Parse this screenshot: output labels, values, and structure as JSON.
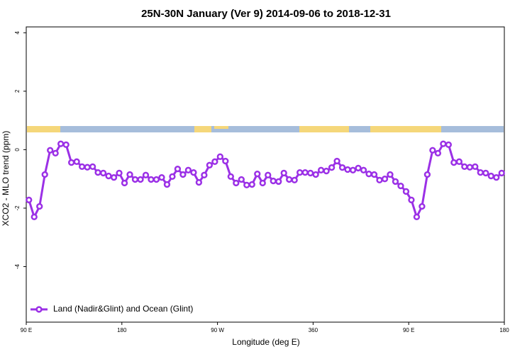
{
  "chart_data": {
    "type": "line",
    "title": "25N-30N January (Ver 9)   2014-09-06 to 2018-12-31",
    "x_label": "Longitude (deg E)",
    "y_label": "XCO2 - MLO trend (ppm)",
    "x": [
      92.5,
      97.5,
      102.5,
      107.5,
      112.5,
      117.5,
      122.5,
      127.5,
      132.5,
      137.5,
      142.5,
      147.5,
      152.5,
      157.5,
      162.5,
      167.5,
      172.5,
      177.5,
      182.5,
      187.5,
      192.5,
      197.5,
      202.5,
      207.5,
      212.5,
      217.5,
      222.5,
      227.5,
      232.5,
      237.5,
      242.5,
      247.5,
      252.5,
      257.5,
      262.5,
      267.5,
      272.5,
      277.5,
      282.5,
      287.5,
      292.5,
      297.5,
      302.5,
      307.5,
      312.5,
      317.5,
      322.5,
      327.5,
      332.5,
      337.5,
      342.5,
      347.5,
      352.5,
      357.5,
      362.5,
      367.5,
      372.5,
      377.5,
      382.5,
      387.5,
      392.5,
      397.5,
      402.5,
      407.5,
      412.5,
      417.5,
      422.5,
      427.5,
      432.5,
      437.5,
      442.5,
      447.5,
      452.5,
      457.5,
      462.5,
      467.5,
      472.5,
      477.5,
      482.5,
      487.5,
      492.5,
      497.5,
      502.5,
      507.5,
      512.5,
      517.5,
      522.5,
      527.5,
      532.5,
      537.5
    ],
    "series": [
      {
        "name": "Land (Nadir&Glint) and Ocean (Glint)",
        "color": "#9b30e6",
        "values": [
          -1.72,
          -2.3,
          -1.94,
          -0.85,
          -0.02,
          -0.12,
          0.2,
          0.17,
          -0.44,
          -0.41,
          -0.58,
          -0.6,
          -0.58,
          -0.78,
          -0.8,
          -0.9,
          -0.95,
          -0.8,
          -1.14,
          -0.85,
          -1.02,
          -1.02,
          -0.87,
          -1.02,
          -1.02,
          -0.95,
          -1.19,
          -0.92,
          -0.66,
          -0.85,
          -0.7,
          -0.78,
          -1.12,
          -0.87,
          -0.53,
          -0.41,
          -0.24,
          -0.39,
          -0.92,
          -1.14,
          -1.02,
          -1.21,
          -1.19,
          -0.83,
          -1.14,
          -0.87,
          -1.07,
          -1.09,
          -0.8,
          -1.02,
          -1.04,
          -0.78,
          -0.78,
          -0.8,
          -0.85,
          -0.7,
          -0.73,
          -0.61,
          -0.39,
          -0.61,
          -0.68,
          -0.7,
          -0.63,
          -0.7,
          -0.83,
          -0.85,
          -1.04,
          -1.0,
          -0.85,
          -1.09,
          -1.24,
          -1.43,
          -1.72,
          -2.3,
          -1.94,
          -0.85,
          -0.02,
          -0.12,
          0.2,
          0.17,
          -0.44,
          -0.41,
          -0.58,
          -0.6,
          -0.58,
          -0.78,
          -0.8,
          -0.9,
          -0.95,
          -0.8
        ]
      }
    ],
    "xlim": [
      90,
      540
    ],
    "xticks": [
      {
        "value": 90,
        "label": "90 E"
      },
      180,
      {
        "value": 270,
        "label": "90 W"
      },
      360,
      {
        "value": 450,
        "label": "90 E"
      },
      {
        "value": 540,
        "label": "180"
      }
    ],
    "ylim": [
      -5.9,
      4.2
    ],
    "yticks": [
      -4,
      -2,
      0,
      2,
      4
    ],
    "legend": "bottom-left"
  }
}
